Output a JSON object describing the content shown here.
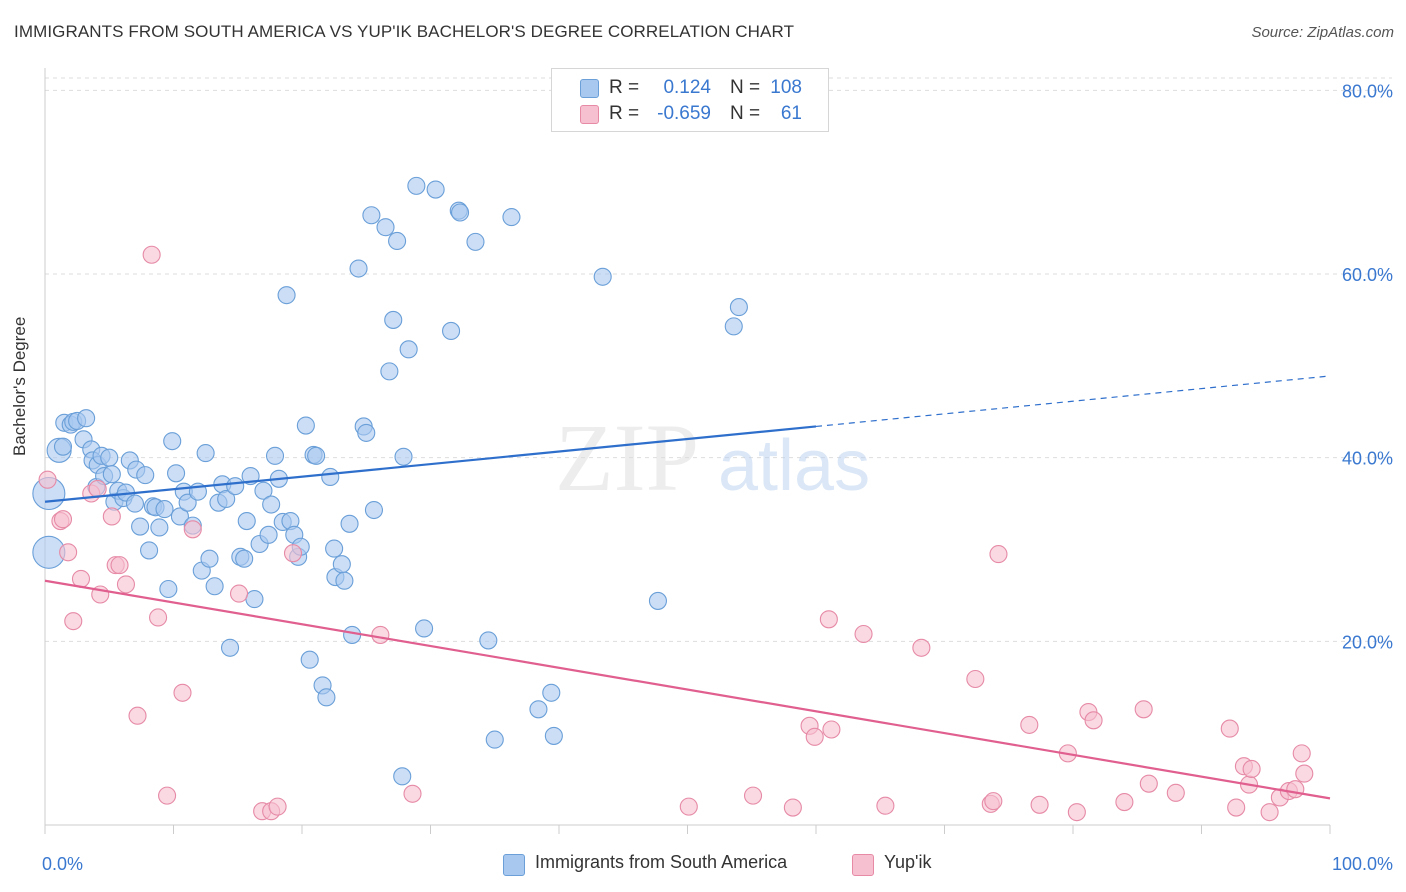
{
  "title": "IMMIGRANTS FROM SOUTH AMERICA VS YUP'IK BACHELOR'S DEGREE CORRELATION CHART",
  "source": "Source: ZipAtlas.com",
  "watermark": {
    "zip": "ZIP",
    "atlas": "atlas"
  },
  "legend": {
    "rows": [
      {
        "r_label": "R =",
        "r_value": "0.124",
        "n_label": "N =",
        "n_value": "108",
        "color": "#a9c8f0",
        "border": "#6a9fd8"
      },
      {
        "r_label": "R =",
        "r_value": "-0.659",
        "n_label": "N =",
        "n_value": "61",
        "color": "#f7c0d0",
        "border": "#e68aa6"
      }
    ]
  },
  "bottom_legend": [
    {
      "label": "Immigrants from South America",
      "color": "#a9c8f0",
      "border": "#6a9fd8"
    },
    {
      "label": "Yup'ik",
      "color": "#f7c0d0",
      "border": "#e68aa6"
    }
  ],
  "chart_data": {
    "type": "scatter",
    "title": "IMMIGRANTS FROM SOUTH AMERICA VS YUP'IK BACHELOR'S DEGREE CORRELATION CHART",
    "xlabel": "",
    "ylabel": "Bachelor's Degree",
    "xlim": [
      0,
      100
    ],
    "ylim": [
      0,
      82
    ],
    "x_tick_labels": [
      "0.0%",
      "100.0%"
    ],
    "y_ticks": [
      20,
      40,
      60,
      80
    ],
    "y_tick_labels": [
      "20.0%",
      "40.0%",
      "60.0%",
      "80.0%"
    ],
    "grid": true,
    "series": [
      {
        "name": "Immigrants from South America",
        "color": "#a9c8f0",
        "edge": "#6a9fd8",
        "line_color": "#2f6fcc",
        "trend": {
          "x0": 0,
          "y0": 35.2,
          "x1": 60,
          "y1": 43.4,
          "dash_to_x": 100,
          "dash_to_y": 48.9
        },
        "points": [
          [
            0.3,
            36.1
          ],
          [
            0.3,
            29.7
          ],
          [
            1.1,
            40.8
          ],
          [
            1.4,
            41.2
          ],
          [
            1.5,
            43.8
          ],
          [
            2,
            43.6
          ],
          [
            2.2,
            43.9
          ],
          [
            2.5,
            44.0
          ],
          [
            3,
            42.0
          ],
          [
            3.2,
            44.3
          ],
          [
            3.6,
            40.9
          ],
          [
            3.7,
            39.7
          ],
          [
            4,
            36.8
          ],
          [
            4.1,
            39.2
          ],
          [
            4.4,
            40.2
          ],
          [
            4.6,
            38.0
          ],
          [
            5,
            40.0
          ],
          [
            5.2,
            38.2
          ],
          [
            5.4,
            35.2
          ],
          [
            5.7,
            36.4
          ],
          [
            6.1,
            35.6
          ],
          [
            6.3,
            36.2
          ],
          [
            6.6,
            39.7
          ],
          [
            7,
            35.0
          ],
          [
            7.1,
            38.7
          ],
          [
            7.4,
            32.5
          ],
          [
            7.8,
            38.1
          ],
          [
            8.1,
            29.9
          ],
          [
            8.4,
            34.7
          ],
          [
            8.6,
            34.6
          ],
          [
            8.9,
            32.4
          ],
          [
            9.3,
            34.4
          ],
          [
            9.6,
            25.7
          ],
          [
            9.9,
            41.8
          ],
          [
            10.2,
            38.3
          ],
          [
            10.5,
            33.6
          ],
          [
            10.8,
            36.3
          ],
          [
            11.1,
            35.1
          ],
          [
            11.5,
            32.6
          ],
          [
            11.9,
            36.3
          ],
          [
            12.2,
            27.7
          ],
          [
            12.5,
            40.5
          ],
          [
            12.8,
            29.0
          ],
          [
            13.2,
            26.0
          ],
          [
            13.5,
            35.1
          ],
          [
            13.8,
            37.1
          ],
          [
            14.1,
            35.5
          ],
          [
            14.4,
            19.3
          ],
          [
            14.8,
            36.9
          ],
          [
            15.2,
            29.2
          ],
          [
            15.5,
            29.0
          ],
          [
            15.7,
            33.1
          ],
          [
            16,
            38.0
          ],
          [
            16.3,
            24.6
          ],
          [
            16.7,
            30.6
          ],
          [
            17,
            36.4
          ],
          [
            17.4,
            31.6
          ],
          [
            17.6,
            34.9
          ],
          [
            17.9,
            40.2
          ],
          [
            18.2,
            37.7
          ],
          [
            18.5,
            33.0
          ],
          [
            18.8,
            57.7
          ],
          [
            19.1,
            33.1
          ],
          [
            19.4,
            31.6
          ],
          [
            19.7,
            29.2
          ],
          [
            19.9,
            30.3
          ],
          [
            20.3,
            43.5
          ],
          [
            20.6,
            18.0
          ],
          [
            20.9,
            40.3
          ],
          [
            21.1,
            40.2
          ],
          [
            21.6,
            15.2
          ],
          [
            21.9,
            13.9
          ],
          [
            22.2,
            37.9
          ],
          [
            22.5,
            30.1
          ],
          [
            22.6,
            27.0
          ],
          [
            23.1,
            28.4
          ],
          [
            23.3,
            26.6
          ],
          [
            23.7,
            32.8
          ],
          [
            23.9,
            20.7
          ],
          [
            24.4,
            60.6
          ],
          [
            24.8,
            43.4
          ],
          [
            25.0,
            42.7
          ],
          [
            25.4,
            66.4
          ],
          [
            25.6,
            34.3
          ],
          [
            26.5,
            65.1
          ],
          [
            26.8,
            49.4
          ],
          [
            27.1,
            55.0
          ],
          [
            27.4,
            63.6
          ],
          [
            27.8,
            5.3
          ],
          [
            27.9,
            40.1
          ],
          [
            28.3,
            51.8
          ],
          [
            28.9,
            69.6
          ],
          [
            29.5,
            21.4
          ],
          [
            30.4,
            69.2
          ],
          [
            31.6,
            53.8
          ],
          [
            32.2,
            66.9
          ],
          [
            32.3,
            66.7
          ],
          [
            33.5,
            63.5
          ],
          [
            34.5,
            20.1
          ],
          [
            35.0,
            9.3
          ],
          [
            36.3,
            66.2
          ],
          [
            38.4,
            12.6
          ],
          [
            39.4,
            14.4
          ],
          [
            39.6,
            9.7
          ],
          [
            43.4,
            59.7
          ],
          [
            47.7,
            24.4
          ],
          [
            53.6,
            54.3
          ],
          [
            54.0,
            56.4
          ]
        ]
      },
      {
        "name": "Yup'ik",
        "color": "#f7c0d0",
        "edge": "#e68aa6",
        "line_color": "#e05f8e",
        "trend": {
          "x0": 0,
          "y0": 26.6,
          "x1": 100,
          "y1": 2.9
        },
        "points": [
          [
            0.2,
            37.6
          ],
          [
            1.2,
            33.1
          ],
          [
            1.4,
            33.3
          ],
          [
            1.8,
            29.7
          ],
          [
            2.2,
            22.2
          ],
          [
            2.8,
            26.8
          ],
          [
            3.6,
            36.1
          ],
          [
            4.1,
            36.6
          ],
          [
            4.3,
            25.1
          ],
          [
            5.2,
            33.6
          ],
          [
            5.5,
            28.3
          ],
          [
            5.8,
            28.3
          ],
          [
            6.3,
            26.2
          ],
          [
            7.2,
            11.9
          ],
          [
            8.3,
            62.1
          ],
          [
            8.8,
            22.6
          ],
          [
            9.5,
            3.2
          ],
          [
            10.7,
            14.4
          ],
          [
            11.5,
            32.2
          ],
          [
            15.1,
            25.2
          ],
          [
            16.9,
            1.5
          ],
          [
            17.6,
            1.5
          ],
          [
            18.1,
            2.0
          ],
          [
            19.3,
            29.6
          ],
          [
            26.1,
            20.7
          ],
          [
            28.6,
            3.4
          ],
          [
            50.1,
            2.0
          ],
          [
            55.1,
            3.2
          ],
          [
            58.2,
            1.9
          ],
          [
            59.5,
            10.8
          ],
          [
            59.9,
            9.6
          ],
          [
            61.0,
            22.4
          ],
          [
            61.2,
            10.4
          ],
          [
            63.7,
            20.8
          ],
          [
            65.4,
            2.1
          ],
          [
            68.2,
            19.3
          ],
          [
            72.4,
            15.9
          ],
          [
            73.6,
            2.3
          ],
          [
            73.8,
            2.6
          ],
          [
            74.2,
            29.5
          ],
          [
            76.6,
            10.9
          ],
          [
            77.4,
            2.2
          ],
          [
            79.6,
            7.8
          ],
          [
            80.3,
            1.4
          ],
          [
            81.2,
            12.3
          ],
          [
            81.6,
            11.4
          ],
          [
            84.0,
            2.5
          ],
          [
            85.5,
            12.6
          ],
          [
            85.9,
            4.5
          ],
          [
            88.0,
            3.5
          ],
          [
            92.2,
            10.5
          ],
          [
            92.7,
            1.9
          ],
          [
            93.3,
            6.4
          ],
          [
            93.7,
            4.4
          ],
          [
            93.9,
            6.1
          ],
          [
            95.3,
            1.4
          ],
          [
            96.1,
            3.0
          ],
          [
            96.8,
            3.7
          ],
          [
            97.3,
            3.9
          ],
          [
            97.8,
            7.8
          ],
          [
            98.0,
            5.6
          ]
        ]
      }
    ]
  }
}
